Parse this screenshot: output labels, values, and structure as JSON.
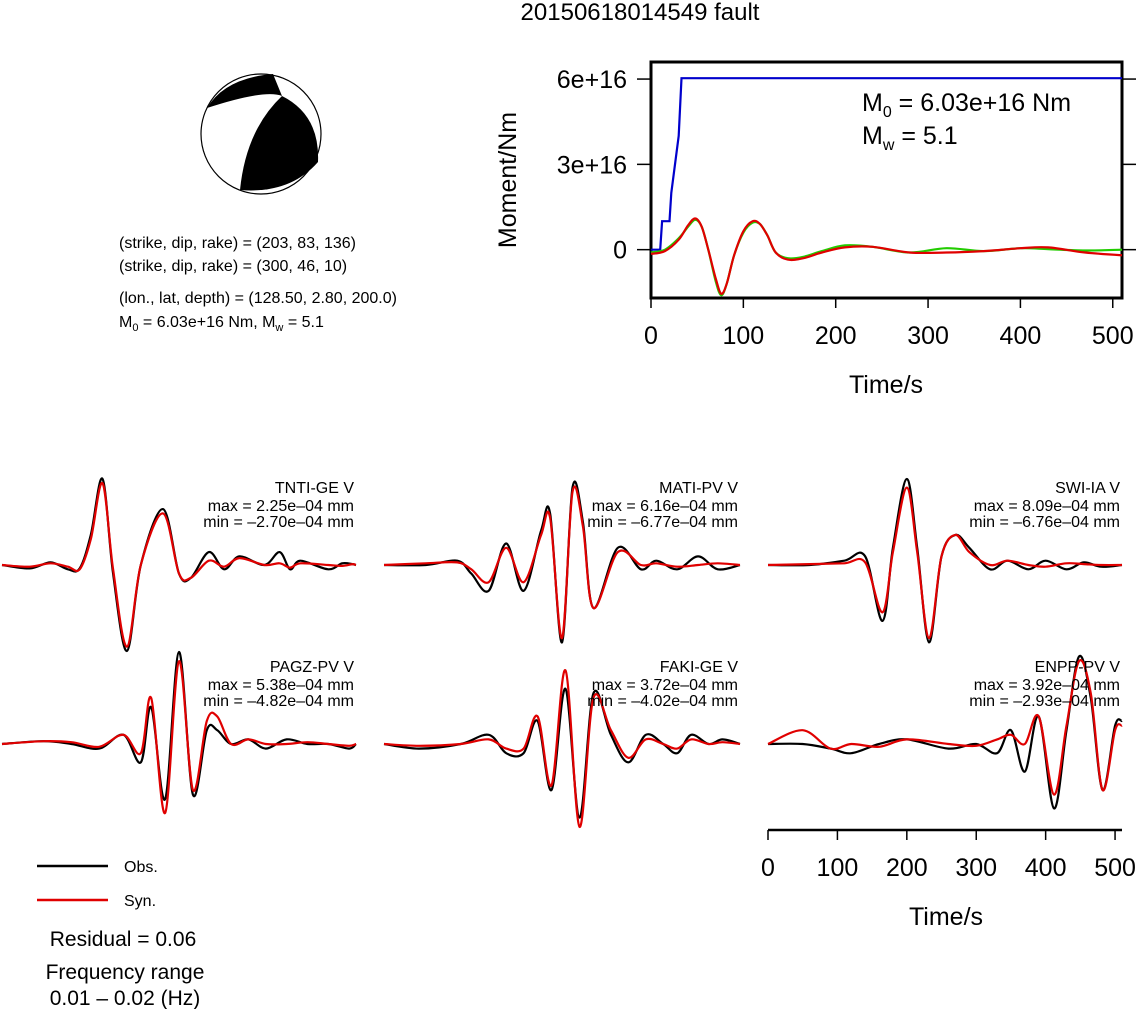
{
  "title": "20150618014549 fault",
  "info": {
    "line1": "(strike, dip, rake) = (203, 83, 136)",
    "line2": "(strike, dip, rake) = (300, 46, 10)",
    "line3": "(lon., lat, depth) = (128.50, 2.80, 200.0)",
    "line4_m0": "M",
    "line4_m0_sub": "0",
    "line4_rest": " = 6.03e+16 Nm, M",
    "line4_mw_sub": "w",
    "line4_end": " = 5.1"
  },
  "moment_panel": {
    "m0_label": "M",
    "m0_sub": "0",
    "m0_value": " = 6.03e+16 Nm",
    "mw_label": "M",
    "mw_sub": "w",
    "mw_value": " = 5.1"
  },
  "legend": {
    "obs": "Obs.",
    "syn": "Syn.",
    "residual": "Residual = 0.06",
    "freq_title": "Frequency range",
    "freq_value": "0.01 – 0.02 (Hz)"
  },
  "colors": {
    "observed": "#000000",
    "synthetic": "#e00000",
    "moment_cumulative": "#0000cc",
    "moment_rate_green": "#22cc00",
    "beachball_fill": "#000000"
  },
  "chart_data": [
    {
      "type": "line",
      "title": "",
      "xlabel": "Time/s",
      "ylabel": "Moment/Nm",
      "xlim": [
        0,
        510
      ],
      "ylim": [
        -17000000000000000,
        66000000000000000
      ],
      "xticks": [
        0,
        100,
        200,
        300,
        400,
        500
      ],
      "xtick_labels": [
        "0",
        "100",
        "200",
        "300",
        "400",
        "500"
      ],
      "yticks": [
        0,
        30000000000000000,
        60000000000000000
      ],
      "ytick_labels": [
        "0",
        "3e+16",
        "6e+16"
      ],
      "series": [
        {
          "color": "#0000cc",
          "x": [
            0,
            10,
            12,
            20,
            22,
            30,
            33,
            510
          ],
          "y": [
            0,
            0,
            1e+16,
            1e+16,
            2e+16,
            4e+16,
            6.03e+16,
            6.03e+16
          ]
        },
        {
          "color": "#22cc00",
          "x": [
            0,
            15,
            30,
            40,
            48,
            55,
            62,
            70,
            76,
            82,
            90,
            100,
            110,
            118,
            126,
            135,
            148,
            165,
            185,
            210,
            240,
            280,
            320,
            360,
            400,
            430,
            470,
            510
          ],
          "y": [
            -1000000000000000.0,
            0,
            4000000000000000.0,
            8000000000000000.0,
            1.05e+16,
            8000000000000000.0,
            0,
            -1.1e+16,
            -1.6e+16,
            -1.2e+16,
            -2000000000000000.0,
            6000000000000000.0,
            9500000000000000.0,
            9000000000000000.0,
            5000000000000000.0,
            -1000000000000000.0,
            -3000000000000000.0,
            -2500000000000000.0,
            -500000000000000.0,
            1500000000000000.0,
            1000000000000000.0,
            -1000000000000000.0,
            500000000000000.0,
            -500000000000000.0,
            500000000000000.0,
            200000000000000.0,
            -300000000000000.0,
            0
          ]
        },
        {
          "color": "#e00000",
          "x": [
            0,
            15,
            30,
            40,
            48,
            55,
            62,
            70,
            76,
            82,
            90,
            100,
            110,
            118,
            126,
            135,
            148,
            165,
            185,
            210,
            240,
            280,
            320,
            360,
            400,
            430,
            470,
            510
          ],
          "y": [
            -1500000000000000.0,
            -500000000000000.0,
            3500000000000000.0,
            8500000000000000.0,
            1.1e+16,
            8000000000000000.0,
            0,
            -1e+16,
            -1.55e+16,
            -1.2e+16,
            -2000000000000000.0,
            6500000000000000.0,
            1e+16,
            9000000000000000.0,
            5000000000000000.0,
            -1000000000000000.0,
            -3500000000000000.0,
            -3000000000000000.0,
            -1000000000000000.0,
            800000000000000.0,
            1000000000000000.0,
            -1000000000000000.0,
            -1000000000000000.0,
            -500000000000000.0,
            500000000000000.0,
            800000000000000.0,
            -1000000000000000.0,
            -2000000000000000.0
          ]
        }
      ]
    },
    {
      "type": "line",
      "xlabel": "Time/s",
      "xlim": [
        0,
        510
      ],
      "xticks": [
        0,
        100,
        200,
        300,
        400,
        500
      ],
      "xtick_labels": [
        "0",
        "100",
        "200",
        "300",
        "400",
        "500"
      ],
      "stations": [
        {
          "name": "TNTI-GE V",
          "max": "max = 2.25e–04 mm",
          "min": "min = –2.70e–04 mm",
          "t": [
            0,
            40,
            70,
            95,
            112,
            128,
            145,
            160,
            180,
            200,
            232,
            255,
            272,
            298,
            320,
            342,
            378,
            400,
            415,
            430,
            470,
            490,
            505,
            510
          ],
          "obs": [
            0,
            -0.04,
            0.03,
            -0.05,
            -0.04,
            0.35,
            1.0,
            -0.1,
            -1.0,
            0.0,
            0.65,
            -0.1,
            -0.15,
            0.15,
            -0.05,
            0.1,
            0.0,
            0.15,
            -0.05,
            0.05,
            -0.05,
            0.02,
            0.01,
            0
          ],
          "syn": [
            0,
            -0.02,
            0.02,
            -0.02,
            -0.05,
            0.3,
            0.95,
            -0.05,
            -0.95,
            0.0,
            0.6,
            -0.1,
            -0.15,
            0.05,
            -0.02,
            0.08,
            0.0,
            0.02,
            -0.03,
            0.02,
            0.0,
            -0.01,
            0.01,
            0
          ]
        },
        {
          "name": "MATI-PV V",
          "max": "max = 6.16e–04 mm",
          "min": "min = –6.77e–04 mm",
          "t": [
            0,
            60,
            105,
            125,
            150,
            175,
            200,
            225,
            238,
            255,
            270,
            285,
            300,
            335,
            368,
            390,
            420,
            450,
            478,
            510
          ],
          "obs": [
            0,
            0.0,
            0.05,
            -0.1,
            -0.3,
            0.25,
            -0.3,
            0.4,
            0.6,
            -0.9,
            0.9,
            0.5,
            -0.5,
            0.2,
            -0.05,
            0.05,
            -0.05,
            0.1,
            -0.05,
            0
          ],
          "syn": [
            0,
            0.02,
            0.03,
            -0.05,
            -0.2,
            0.2,
            -0.2,
            0.35,
            0.55,
            -0.85,
            0.85,
            0.45,
            -0.5,
            0.15,
            0.0,
            0.02,
            -0.02,
            0.0,
            0.02,
            0
          ]
        },
        {
          "name": "SWI-IA V",
          "max": "max = 8.09e–04 mm",
          "min": "min = –6.76e–04 mm",
          "t": [
            0,
            60,
            110,
            140,
            165,
            180,
            200,
            215,
            232,
            250,
            270,
            290,
            320,
            345,
            375,
            400,
            430,
            455,
            480,
            510
          ],
          "obs": [
            0,
            0.0,
            0.05,
            0.1,
            -0.65,
            0.2,
            1.0,
            0.2,
            -0.9,
            0.1,
            0.35,
            0.2,
            -0.05,
            0.05,
            -0.05,
            0.05,
            -0.05,
            0.03,
            -0.02,
            0
          ],
          "syn": [
            0,
            0.01,
            0.02,
            0.03,
            -0.55,
            0.15,
            0.9,
            0.15,
            -0.85,
            0.1,
            0.35,
            0.15,
            0.0,
            0.05,
            0.0,
            -0.02,
            0.02,
            0.01,
            0.0,
            0
          ]
        },
        {
          "name": "PAGZ-PV V",
          "max": "max = 5.38e–04 mm",
          "min": "min = –4.82e–04 mm",
          "t": [
            0,
            60,
            100,
            140,
            175,
            200,
            215,
            235,
            255,
            275,
            295,
            310,
            330,
            355,
            380,
            410,
            440,
            470,
            500,
            510
          ],
          "obs": [
            0,
            0.03,
            0.0,
            -0.05,
            0.1,
            -0.2,
            0.4,
            -0.6,
            1.0,
            -0.55,
            0.15,
            0.15,
            0.0,
            0.05,
            -0.05,
            0.05,
            0.0,
            0.0,
            -0.05,
            0
          ],
          "syn": [
            0,
            0.03,
            0.02,
            -0.03,
            0.1,
            -0.1,
            0.5,
            -0.75,
            0.9,
            -0.5,
            0.25,
            0.3,
            0.0,
            0.05,
            0.0,
            0.0,
            0.02,
            0.0,
            -0.02,
            0
          ]
        },
        {
          "name": "FAKI-GE V",
          "max": "max = 3.72e–04 mm",
          "min": "min = –4.02e–04 mm",
          "t": [
            0,
            50,
            110,
            150,
            175,
            200,
            220,
            240,
            260,
            280,
            300,
            325,
            350,
            375,
            400,
            420,
            440,
            465,
            485,
            510
          ],
          "obs": [
            0,
            -0.05,
            0.0,
            0.1,
            -0.1,
            -0.1,
            0.25,
            -0.5,
            0.6,
            -0.8,
            0.55,
            0.1,
            -0.2,
            0.1,
            0.0,
            -0.1,
            0.1,
            0.0,
            0.05,
            0
          ],
          "syn": [
            0,
            -0.02,
            0.0,
            0.05,
            -0.05,
            -0.05,
            0.3,
            -0.45,
            0.8,
            -0.9,
            0.5,
            0.15,
            -0.15,
            0.05,
            0.0,
            -0.05,
            0.05,
            0.0,
            0.02,
            0
          ]
        },
        {
          "name": "ENPP-PV V",
          "max": "max = 3.92e–04 mm",
          "min": "min = –2.93e–04 mm",
          "t": [
            0,
            50,
            90,
            120,
            160,
            200,
            260,
            300,
            330,
            350,
            370,
            390,
            412,
            430,
            448,
            465,
            482,
            500,
            510
          ],
          "obs": [
            0,
            0.0,
            -0.05,
            -0.1,
            0.0,
            0.05,
            -0.05,
            0.0,
            -0.1,
            0.15,
            -0.3,
            0.3,
            -0.7,
            0.15,
            0.95,
            0.5,
            -0.5,
            0.2,
            0.25
          ],
          "syn": [
            0,
            0.15,
            -0.05,
            0.0,
            -0.03,
            0.05,
            0.0,
            -0.02,
            0.05,
            0.1,
            0.0,
            0.3,
            -0.55,
            0.2,
            0.9,
            0.55,
            -0.5,
            0.15,
            0.2
          ]
        }
      ]
    }
  ]
}
